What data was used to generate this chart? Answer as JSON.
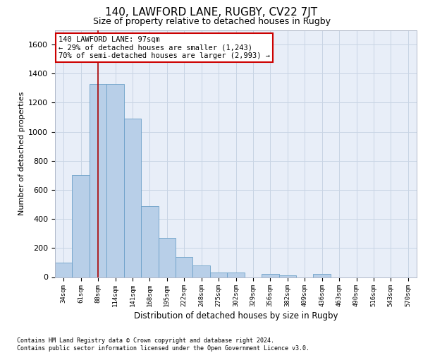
{
  "title_line1": "140, LAWFORD LANE, RUGBY, CV22 7JT",
  "title_line2": "Size of property relative to detached houses in Rugby",
  "xlabel": "Distribution of detached houses by size in Rugby",
  "ylabel": "Number of detached properties",
  "categories": [
    "34sqm",
    "61sqm",
    "88sqm",
    "114sqm",
    "141sqm",
    "168sqm",
    "195sqm",
    "222sqm",
    "248sqm",
    "275sqm",
    "302sqm",
    "329sqm",
    "356sqm",
    "382sqm",
    "409sqm",
    "436sqm",
    "463sqm",
    "490sqm",
    "516sqm",
    "543sqm",
    "570sqm"
  ],
  "values": [
    100,
    700,
    1330,
    1330,
    1090,
    490,
    270,
    140,
    80,
    30,
    30,
    0,
    20,
    10,
    0,
    20,
    0,
    0,
    0,
    0,
    0
  ],
  "bar_color": "#b8cfe8",
  "bar_edge_color": "#6ca0c8",
  "grid_color": "#c8d4e4",
  "background_color": "#e8eef8",
  "vline_color": "#aa0000",
  "vline_x": 2,
  "annotation_text": "140 LAWFORD LANE: 97sqm\n← 29% of detached houses are smaller (1,243)\n70% of semi-detached houses are larger (2,993) →",
  "ylim": [
    0,
    1700
  ],
  "yticks": [
    0,
    200,
    400,
    600,
    800,
    1000,
    1200,
    1400,
    1600
  ],
  "footer_line1": "Contains HM Land Registry data © Crown copyright and database right 2024.",
  "footer_line2": "Contains public sector information licensed under the Open Government Licence v3.0."
}
